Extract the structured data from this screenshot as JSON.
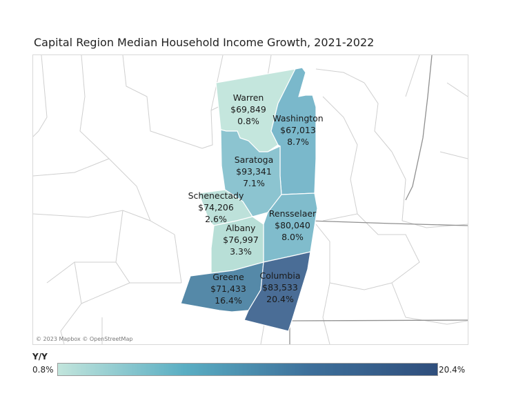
{
  "title": "Capital Region Median Household Income Growth, 2021-2022",
  "attribution": "© 2023 Mapbox © OpenStreetMap",
  "legend": {
    "title": "Y/Y",
    "min_label": "0.8%",
    "max_label": "20.4%",
    "colors": [
      "#c2e5dc",
      "#5aaec3",
      "#3d6f9a",
      "#2f4e7c"
    ]
  },
  "counties": [
    {
      "name": "Warren",
      "income": "$69,849",
      "growth": "0.8%",
      "color": "#c4e6dd"
    },
    {
      "name": "Washington",
      "income": "$67,013",
      "growth": "8.7%",
      "color": "#7ab8cb"
    },
    {
      "name": "Saratoga",
      "income": "$93,341",
      "growth": "7.1%",
      "color": "#8cc4d0"
    },
    {
      "name": "Schenectady",
      "income": "$74,206",
      "growth": "2.6%",
      "color": "#bde1da"
    },
    {
      "name": "Rensselaer",
      "income": "$80,040",
      "growth": "8.0%",
      "color": "#80bccc"
    },
    {
      "name": "Albany",
      "income": "$76,997",
      "growth": "3.3%",
      "color": "#b8dfd7"
    },
    {
      "name": "Greene",
      "income": "$71,433",
      "growth": "16.4%",
      "color": "#5589a8"
    },
    {
      "name": "Columbia",
      "income": "$83,533",
      "growth": "20.4%",
      "color": "#4a6d96"
    }
  ]
}
